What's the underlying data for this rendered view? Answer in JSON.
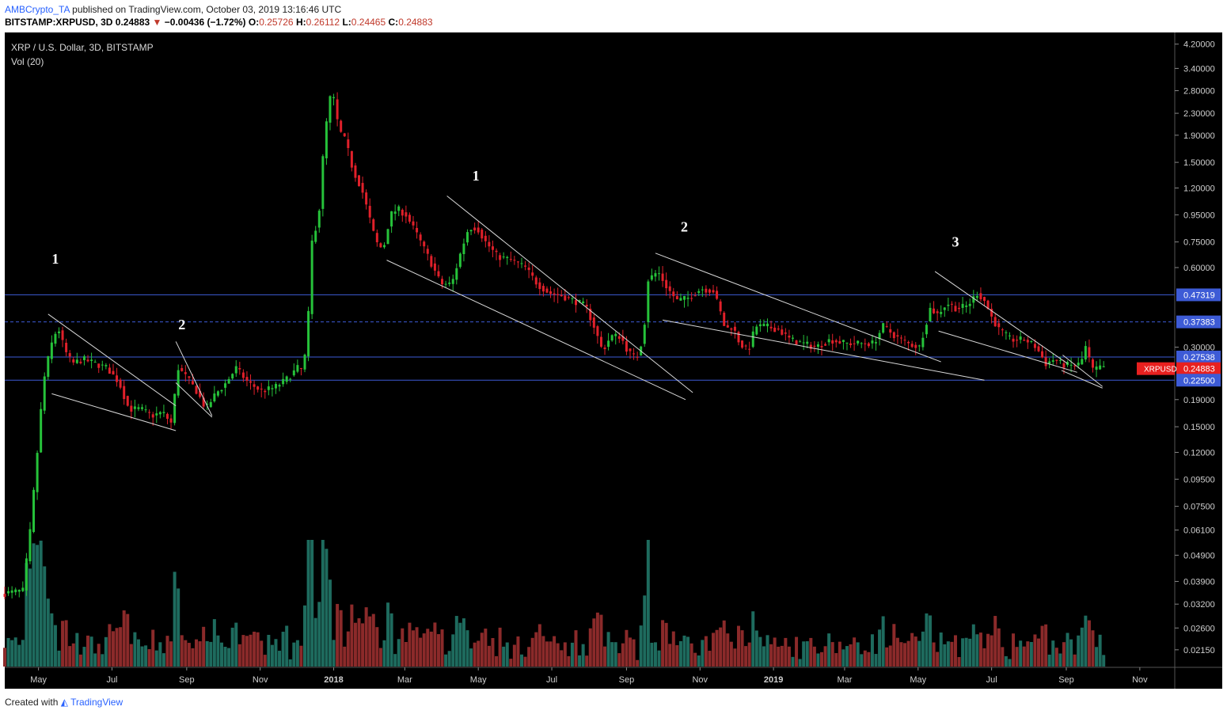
{
  "header": {
    "author": "AMBCrypto_TA",
    "published_text": "published on TradingView.com, October 03, 2019 13:16:46 UTC",
    "symbol": "BITSTAMP:XRPUSD, 3D",
    "last": "0.24883",
    "change": "−0.00436 (−1.72%)",
    "open_label": "O:",
    "open": "0.25726",
    "high_label": "H:",
    "high": "0.26112",
    "low_label": "L:",
    "low": "0.24465",
    "close_label": "C:",
    "close": "0.24883"
  },
  "footer": {
    "created_with": "Created with",
    "brand": "TradingView"
  },
  "colors": {
    "background": "#000000",
    "up": "#26c23a",
    "down": "#e0202a",
    "vol_up": "#1e6b5e",
    "vol_down": "#8b2a2a",
    "hline": "#3d5bd6",
    "trendline": "#d8d8d8",
    "price_tag": "#e8201f"
  },
  "chart_data": {
    "type": "candlestick",
    "title": "XRP / U.S. Dollar, 3D, BITSTAMP",
    "indicator": "Vol (20)",
    "y_scale": "log",
    "ylim": [
      0.0195,
      4.4
    ],
    "y_ticks": [
      "4.20000",
      "3.40000",
      "2.80000",
      "2.30000",
      "1.90000",
      "1.50000",
      "1.20000",
      "0.95000",
      "0.75000",
      "0.60000",
      "0.47319",
      "0.37383",
      "0.30000",
      "0.27538",
      "0.24883",
      "0.22500",
      "0.19000",
      "0.15000",
      "0.12000",
      "0.09500",
      "0.07500",
      "0.06100",
      "0.04900",
      "0.03900",
      "0.03200",
      "0.02600",
      "0.02150"
    ],
    "x_ticks": [
      "May",
      "Jul",
      "Sep",
      "Nov",
      "2018",
      "Mar",
      "May",
      "Jul",
      "Sep",
      "Nov",
      "2019",
      "Mar",
      "May",
      "Jul",
      "Sep",
      "Nov"
    ],
    "x_tick_dates": [
      "2017-05-01",
      "2017-07-01",
      "2017-09-01",
      "2017-11-01",
      "2018-01-01",
      "2018-03-01",
      "2018-05-01",
      "2018-07-01",
      "2018-09-01",
      "2018-11-01",
      "2019-01-01",
      "2019-03-01",
      "2019-05-01",
      "2019-07-01",
      "2019-09-01",
      "2019-11-01"
    ],
    "x_range": [
      "2017-04-03",
      "2019-11-30"
    ],
    "horizontal_levels": [
      {
        "value": 0.47319,
        "label": "0.47319",
        "style": "solid"
      },
      {
        "value": 0.37383,
        "label": "0.37383",
        "style": "dashed"
      },
      {
        "value": 0.27538,
        "label": "0.27538",
        "style": "solid"
      },
      {
        "value": 0.225,
        "label": "0.22500",
        "style": "solid"
      }
    ],
    "last_price": {
      "symbol": "XRPUSD",
      "value": 0.24883,
      "label": "0.24883"
    },
    "annotations": [
      {
        "text": "1",
        "date": "2017-05-15",
        "price": 0.62
      },
      {
        "text": "2",
        "date": "2017-08-28",
        "price": 0.35
      },
      {
        "text": "1",
        "date": "2018-04-29",
        "price": 1.28
      },
      {
        "text": "2",
        "date": "2018-10-19",
        "price": 0.82
      },
      {
        "text": "3",
        "date": "2019-06-01",
        "price": 0.72
      }
    ],
    "trendlines": [
      {
        "points": [
          [
            "2017-05-09",
            0.4
          ],
          [
            "2017-08-23",
            0.18
          ]
        ]
      },
      {
        "points": [
          [
            "2017-05-12",
            0.2
          ],
          [
            "2017-08-23",
            0.145
          ]
        ]
      },
      {
        "points": [
          [
            "2017-08-23",
            0.315
          ],
          [
            "2017-09-22",
            0.165
          ]
        ]
      },
      {
        "points": [
          [
            "2017-08-23",
            0.22
          ],
          [
            "2017-09-22",
            0.163
          ]
        ]
      },
      {
        "points": [
          [
            "2018-04-05",
            1.12
          ],
          [
            "2018-10-26",
            0.202
          ]
        ]
      },
      {
        "points": [
          [
            "2018-02-14",
            0.64
          ],
          [
            "2018-10-20",
            0.19
          ]
        ]
      },
      {
        "points": [
          [
            "2018-09-25",
            0.68
          ],
          [
            "2019-05-20",
            0.264
          ]
        ]
      },
      {
        "points": [
          [
            "2018-10-01",
            0.38
          ],
          [
            "2019-06-25",
            0.225
          ]
        ]
      },
      {
        "points": [
          [
            "2019-05-15",
            0.58
          ],
          [
            "2019-09-02",
            0.26
          ]
        ]
      },
      {
        "points": [
          [
            "2019-05-18",
            0.345
          ],
          [
            "2019-09-10",
            0.241
          ]
        ]
      },
      {
        "points": [
          [
            "2019-08-28",
            0.245
          ],
          [
            "2019-10-01",
            0.21
          ]
        ]
      },
      {
        "points": [
          [
            "2019-08-29",
            0.28
          ],
          [
            "2019-10-01",
            0.213
          ]
        ]
      }
    ],
    "price_path": [
      [
        "2017-04-03",
        0.035
      ],
      [
        "2017-04-21",
        0.036
      ],
      [
        "2017-04-27",
        0.06
      ],
      [
        "2017-05-03",
        0.12
      ],
      [
        "2017-05-08",
        0.22
      ],
      [
        "2017-05-14",
        0.3
      ],
      [
        "2017-05-20",
        0.36
      ],
      [
        "2017-05-26",
        0.29
      ],
      [
        "2017-06-01",
        0.26
      ],
      [
        "2017-06-10",
        0.27
      ],
      [
        "2017-06-20",
        0.26
      ],
      [
        "2017-06-30",
        0.25
      ],
      [
        "2017-07-10",
        0.22
      ],
      [
        "2017-07-18",
        0.175
      ],
      [
        "2017-07-28",
        0.175
      ],
      [
        "2017-08-06",
        0.165
      ],
      [
        "2017-08-15",
        0.17
      ],
      [
        "2017-08-22",
        0.155
      ],
      [
        "2017-08-28",
        0.25
      ],
      [
        "2017-09-04",
        0.23
      ],
      [
        "2017-09-12",
        0.205
      ],
      [
        "2017-09-20",
        0.175
      ],
      [
        "2017-09-28",
        0.2
      ],
      [
        "2017-10-05",
        0.215
      ],
      [
        "2017-10-15",
        0.25
      ],
      [
        "2017-10-25",
        0.22
      ],
      [
        "2017-11-05",
        0.205
      ],
      [
        "2017-11-15",
        0.21
      ],
      [
        "2017-11-25",
        0.225
      ],
      [
        "2017-12-05",
        0.25
      ],
      [
        "2017-12-10",
        0.245
      ],
      [
        "2017-12-14",
        0.4
      ],
      [
        "2017-12-17",
        0.75
      ],
      [
        "2017-12-20",
        0.85
      ],
      [
        "2017-12-23",
        1.0
      ],
      [
        "2017-12-27",
        1.8
      ],
      [
        "2017-12-30",
        2.3
      ],
      [
        "2018-01-02",
        2.8
      ],
      [
        "2018-01-05",
        2.5
      ],
      [
        "2018-01-08",
        2.0
      ],
      [
        "2018-01-14",
        1.8
      ],
      [
        "2018-01-20",
        1.4
      ],
      [
        "2018-01-27",
        1.2
      ],
      [
        "2018-02-02",
        0.95
      ],
      [
        "2018-02-08",
        0.75
      ],
      [
        "2018-02-14",
        0.7
      ],
      [
        "2018-02-20",
        0.95
      ],
      [
        "2018-02-26",
        1.0
      ],
      [
        "2018-03-05",
        0.95
      ],
      [
        "2018-03-14",
        0.8
      ],
      [
        "2018-03-24",
        0.65
      ],
      [
        "2018-04-03",
        0.52
      ],
      [
        "2018-04-12",
        0.52
      ],
      [
        "2018-04-20",
        0.7
      ],
      [
        "2018-04-26",
        0.85
      ],
      [
        "2018-05-03",
        0.85
      ],
      [
        "2018-05-10",
        0.75
      ],
      [
        "2018-05-20",
        0.66
      ],
      [
        "2018-06-01",
        0.64
      ],
      [
        "2018-06-12",
        0.6
      ],
      [
        "2018-06-22",
        0.52
      ],
      [
        "2018-07-02",
        0.48
      ],
      [
        "2018-07-12",
        0.47
      ],
      [
        "2018-07-22",
        0.45
      ],
      [
        "2018-08-01",
        0.43
      ],
      [
        "2018-08-08",
        0.36
      ],
      [
        "2018-08-15",
        0.29
      ],
      [
        "2018-08-22",
        0.33
      ],
      [
        "2018-08-30",
        0.33
      ],
      [
        "2018-09-05",
        0.29
      ],
      [
        "2018-09-12",
        0.27
      ],
      [
        "2018-09-18",
        0.33
      ],
      [
        "2018-09-22",
        0.54
      ],
      [
        "2018-09-30",
        0.58
      ],
      [
        "2018-10-08",
        0.5
      ],
      [
        "2018-10-16",
        0.45
      ],
      [
        "2018-10-25",
        0.46
      ],
      [
        "2018-11-05",
        0.5
      ],
      [
        "2018-11-15",
        0.49
      ],
      [
        "2018-11-20",
        0.42
      ],
      [
        "2018-11-25",
        0.35
      ],
      [
        "2018-12-01",
        0.36
      ],
      [
        "2018-12-07",
        0.31
      ],
      [
        "2018-12-14",
        0.29
      ],
      [
        "2018-12-20",
        0.36
      ],
      [
        "2018-12-28",
        0.36
      ],
      [
        "2019-01-08",
        0.35
      ],
      [
        "2019-01-18",
        0.32
      ],
      [
        "2019-01-28",
        0.31
      ],
      [
        "2019-02-08",
        0.3
      ],
      [
        "2019-02-20",
        0.32
      ],
      [
        "2019-03-05",
        0.31
      ],
      [
        "2019-03-18",
        0.31
      ],
      [
        "2019-03-28",
        0.31
      ],
      [
        "2019-04-05",
        0.36
      ],
      [
        "2019-04-15",
        0.33
      ],
      [
        "2019-04-25",
        0.31
      ],
      [
        "2019-05-05",
        0.3
      ],
      [
        "2019-05-14",
        0.42
      ],
      [
        "2019-05-20",
        0.4
      ],
      [
        "2019-05-28",
        0.44
      ],
      [
        "2019-06-05",
        0.42
      ],
      [
        "2019-06-14",
        0.43
      ],
      [
        "2019-06-22",
        0.48
      ],
      [
        "2019-06-28",
        0.45
      ],
      [
        "2019-07-04",
        0.39
      ],
      [
        "2019-07-10",
        0.35
      ],
      [
        "2019-07-20",
        0.32
      ],
      [
        "2019-08-01",
        0.32
      ],
      [
        "2019-08-10",
        0.3
      ],
      [
        "2019-08-18",
        0.26
      ],
      [
        "2019-08-25",
        0.27
      ],
      [
        "2019-09-01",
        0.257
      ],
      [
        "2019-09-10",
        0.255
      ],
      [
        "2019-09-16",
        0.26
      ],
      [
        "2019-09-20",
        0.3
      ],
      [
        "2019-09-24",
        0.26
      ],
      [
        "2019-09-27",
        0.24
      ],
      [
        "2019-10-01",
        0.255
      ],
      [
        "2019-10-03",
        0.24883
      ]
    ],
    "volume_scale": {
      "min": 0,
      "max": 1.0
    }
  }
}
